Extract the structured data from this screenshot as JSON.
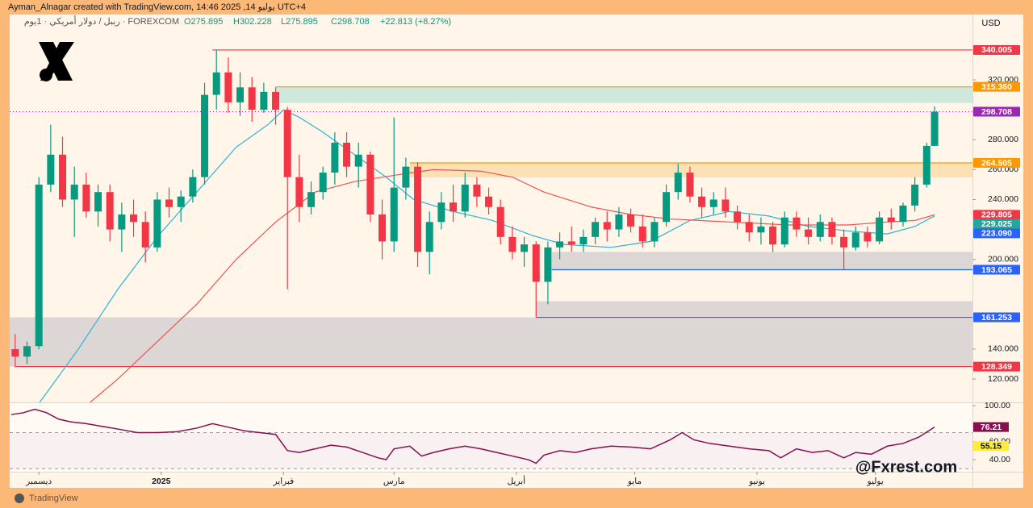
{
  "header": {
    "credit": "Ayman_Alnagar created with TradingView.com, يوليو 14, 2025 14:46 UTC+4",
    "symbol": "ريبل / دولار أمريكي · 1يوم · FOREXCOM",
    "open": "O275.895",
    "high": "H302.228",
    "low": "L275.895",
    "close": "C298.708",
    "change": "+22.813 (+8.27%)",
    "currency": "USD",
    "watermark": "@Fxrest.com",
    "brand": "TradingView"
  },
  "chart_data": [
    {
      "type": "candlestick",
      "up_color": "#089981",
      "down_color": "#f23645",
      "xlim": [
        -7.4,
        236.6
      ],
      "ylim": [
        104.4,
        363.7
      ],
      "xticks": [
        {
          "value": 0,
          "label": "ديسمبر"
        },
        {
          "value": 31,
          "label": "2025"
        },
        {
          "value": 62,
          "label": "فبراير"
        },
        {
          "value": 90,
          "label": "مارس"
        },
        {
          "value": 121,
          "label": "أبريل"
        },
        {
          "value": 151,
          "label": "مايو"
        },
        {
          "value": 182,
          "label": "يونيو"
        },
        {
          "value": 212,
          "label": "يوليو"
        }
      ],
      "yticks": [
        {
          "value": 320,
          "label": "320.000"
        },
        {
          "value": 280,
          "label": "280.000"
        },
        {
          "value": 260,
          "label": "260.000"
        },
        {
          "value": 240,
          "label": "240.000"
        },
        {
          "value": 200,
          "label": "200.000"
        },
        {
          "value": 140,
          "label": "140.000"
        },
        {
          "value": 120,
          "label": "120.000"
        }
      ],
      "x": [
        -6,
        -3,
        0,
        3,
        6,
        9,
        12,
        15,
        18,
        21,
        24,
        27,
        30,
        33,
        36,
        39,
        42,
        45,
        48,
        51,
        54,
        57,
        60,
        63,
        66,
        69,
        72,
        75,
        78,
        81,
        84,
        87,
        90,
        93,
        96,
        99,
        102,
        105,
        108,
        111,
        114,
        117,
        120,
        123,
        126,
        129,
        132,
        135,
        138,
        141,
        144,
        147,
        150,
        153,
        156,
        159,
        162,
        165,
        168,
        171,
        174,
        177,
        180,
        183,
        186,
        189,
        192,
        195,
        198,
        201,
        204,
        207,
        210,
        213,
        216,
        219,
        222,
        225,
        227
      ],
      "open": [
        140,
        135,
        142,
        250,
        270,
        240,
        250,
        232,
        245,
        220,
        230,
        225,
        208,
        240,
        235,
        242,
        255,
        310,
        325,
        305,
        315,
        300,
        312,
        300,
        255,
        235,
        245,
        258,
        278,
        262,
        270,
        230,
        212,
        248,
        262,
        205,
        225,
        238,
        232,
        250,
        242,
        235,
        215,
        205,
        210,
        185,
        208,
        212,
        210,
        215,
        225,
        220,
        230,
        222,
        212,
        225,
        245,
        258,
        242,
        235,
        240,
        232,
        225,
        218,
        222,
        210,
        228,
        220,
        215,
        225,
        215,
        208,
        218,
        212,
        228,
        225,
        236,
        250,
        275.895
      ],
      "high": [
        150,
        145,
        255,
        290,
        282,
        262,
        258,
        250,
        250,
        238,
        240,
        232,
        245,
        248,
        246,
        260,
        318,
        340.005,
        335,
        325,
        322,
        318,
        315,
        302,
        270,
        252,
        262,
        285,
        285,
        278,
        272,
        240,
        295,
        268,
        265,
        232,
        245,
        250,
        258,
        255,
        248,
        240,
        222,
        215,
        212,
        212,
        218,
        222,
        220,
        228,
        232,
        235,
        234,
        230,
        228,
        250,
        264,
        262,
        248,
        245,
        248,
        236,
        230,
        228,
        225,
        232,
        232,
        228,
        230,
        228,
        220,
        222,
        222,
        232,
        234,
        238,
        255,
        278,
        302.228
      ],
      "low": [
        128,
        130,
        140,
        245,
        235,
        215,
        228,
        222,
        212,
        205,
        215,
        198,
        205,
        228,
        225,
        238,
        250,
        300,
        298,
        296,
        292,
        298,
        290,
        180,
        225,
        230,
        240,
        250,
        255,
        248,
        225,
        200,
        205,
        240,
        195,
        190,
        220,
        225,
        228,
        235,
        230,
        210,
        200,
        195,
        161.253,
        170,
        200,
        205,
        205,
        210,
        212,
        215,
        218,
        208,
        208,
        222,
        240,
        238,
        228,
        230,
        228,
        220,
        212,
        210,
        205,
        208,
        215,
        210,
        212,
        210,
        193.065,
        206,
        208,
        210,
        220,
        222,
        232,
        248,
        275.895
      ],
      "close": [
        135,
        142,
        250,
        270,
        240,
        250,
        232,
        245,
        220,
        230,
        225,
        208,
        240,
        235,
        242,
        255,
        310,
        325,
        305,
        315,
        300,
        312,
        300,
        255,
        235,
        245,
        258,
        278,
        262,
        270,
        230,
        212,
        248,
        262,
        205,
        225,
        238,
        232,
        250,
        242,
        235,
        215,
        205,
        210,
        185,
        208,
        212,
        210,
        215,
        225,
        220,
        230,
        222,
        212,
        225,
        245,
        258,
        242,
        235,
        240,
        232,
        225,
        218,
        222,
        210,
        228,
        220,
        215,
        225,
        215,
        208,
        218,
        212,
        228,
        225,
        236,
        250,
        275.895,
        298.708
      ],
      "moving_averages": [
        {
          "color": "#2bb3d6",
          "x": [
            -1,
            10,
            20,
            30,
            40,
            50,
            58,
            62,
            66,
            72,
            80,
            88,
            95,
            105,
            115,
            125,
            133,
            145,
            155,
            165,
            175,
            185,
            195,
            205,
            215,
            222,
            227
          ],
          "values": [
            100,
            140,
            180,
            215,
            245,
            275,
            290,
            300,
            295,
            285,
            270,
            255,
            240,
            232,
            226,
            216,
            210,
            208,
            212,
            226,
            232,
            229,
            222,
            219,
            217,
            222,
            229.025
          ]
        },
        {
          "color": "#ef5350",
          "x": [
            11,
            20,
            30,
            40,
            50,
            60,
            70,
            80,
            92,
            100,
            112,
            120,
            128,
            140,
            150,
            160,
            175,
            190,
            205,
            215,
            222,
            227
          ],
          "values": [
            100,
            120,
            145,
            170,
            200,
            225,
            245,
            252,
            257,
            260,
            259,
            255,
            245,
            235,
            230,
            227,
            225,
            223,
            223,
            225,
            226,
            229.805
          ]
        }
      ],
      "zones": [
        {
          "low": 304.6,
          "high": 315.36,
          "start": 60,
          "color": "#cfe8dc"
        },
        {
          "low": 254.8,
          "high": 264.505,
          "start": 94,
          "color": "#fde0b5"
        },
        {
          "low": 193.065,
          "high": 205,
          "start": 130,
          "color": "#dcd6d4"
        },
        {
          "low": 161.253,
          "high": 172,
          "start": 126,
          "color": "#dcd6d4"
        },
        {
          "low": 128.349,
          "high": 161.253,
          "start": -7.4,
          "color": "#dcd6d4"
        }
      ],
      "levels": [
        {
          "value": 340.005,
          "label": "340.005",
          "color": "#f23645",
          "start": 44
        },
        {
          "value": 315.36,
          "label": "315.360",
          "color": "#ff9800",
          "start": 60
        },
        {
          "value": 298.708,
          "label": "298.708",
          "color": "#9c27b0",
          "start": -7.4,
          "dotted": true
        },
        {
          "value": 264.505,
          "label": "264.505",
          "color": "#ff9800",
          "start": 94
        },
        {
          "value": 229.805,
          "label": "229.805",
          "color": "#f23645"
        },
        {
          "value": 229.025,
          "label": "229.025",
          "color": "#26a69a"
        },
        {
          "value": 223.09,
          "label": "223.090",
          "color": "#2962ff"
        },
        {
          "value": 193.065,
          "label": "193.065",
          "color": "#2962ff",
          "start": 130
        },
        {
          "value": 161.253,
          "label": "161.253",
          "color": "#2962ff",
          "start": 126
        },
        {
          "value": 128.349,
          "label": "128.349",
          "color": "#f23645",
          "start": -6
        }
      ]
    },
    {
      "type": "line",
      "color": "#880e4f",
      "ylim": [
        26.6,
        102.7
      ],
      "band": [
        30,
        70
      ],
      "yticks": [
        {
          "value": 100,
          "label": "100.00"
        },
        {
          "value": 60,
          "label": "60.00"
        },
        {
          "value": 40,
          "label": "40.00"
        }
      ],
      "x": [
        -7,
        -4,
        -1,
        2,
        5,
        8,
        12,
        16,
        20,
        25,
        30,
        35,
        40,
        44,
        48,
        52,
        56,
        60,
        63,
        66,
        70,
        74,
        78,
        82,
        86,
        88,
        90,
        94,
        97,
        100,
        104,
        108,
        112,
        116,
        120,
        124,
        126,
        128,
        132,
        136,
        140,
        145,
        150,
        155,
        160,
        163,
        166,
        170,
        175,
        180,
        185,
        188,
        192,
        196,
        200,
        204,
        207,
        211,
        215,
        219,
        223,
        227
      ],
      "values": [
        90,
        92,
        96,
        92,
        85,
        82,
        80,
        77,
        74,
        70,
        70,
        71,
        75,
        80,
        76,
        72,
        70,
        68,
        50,
        48,
        52,
        56,
        54,
        48,
        42,
        40,
        52,
        55,
        44,
        48,
        52,
        55,
        52,
        48,
        44,
        40,
        36,
        45,
        50,
        48,
        52,
        55,
        54,
        52,
        62,
        70,
        62,
        58,
        55,
        52,
        50,
        42,
        52,
        48,
        50,
        42,
        48,
        46,
        55,
        58,
        65,
        76.21
      ],
      "labels": [
        {
          "value": 76.21,
          "color": "#880e4f"
        },
        {
          "value": 55.15,
          "color": "#ffeb3b"
        }
      ]
    }
  ]
}
